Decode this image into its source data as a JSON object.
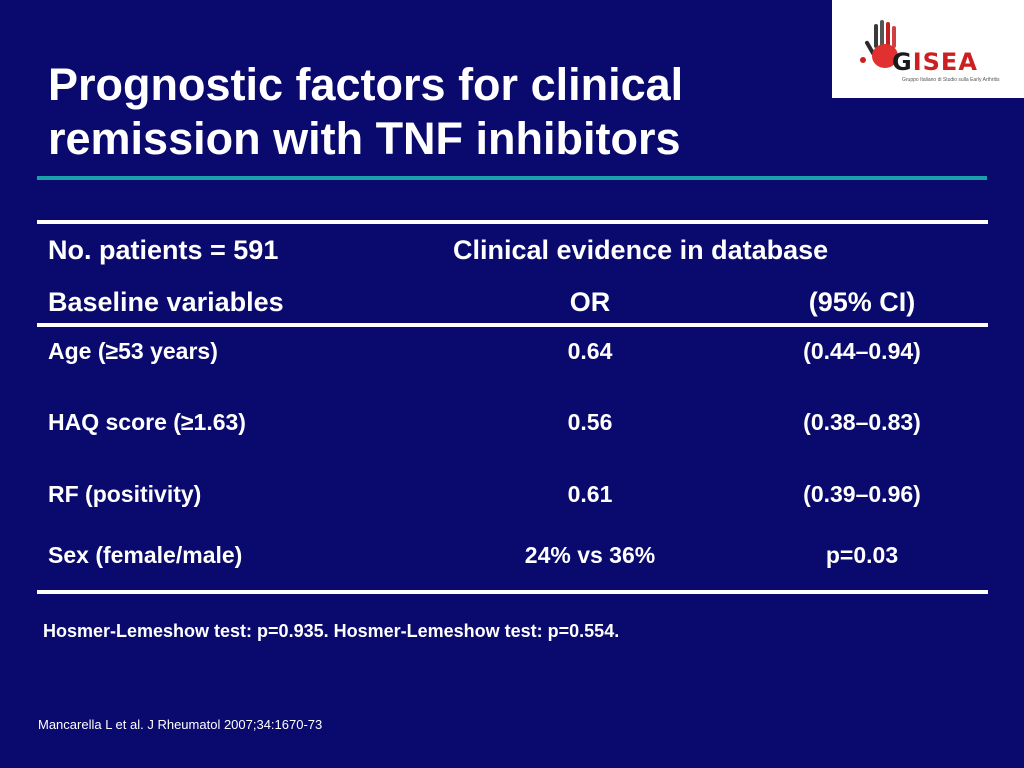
{
  "slide": {
    "title_line1": "Prognostic factors for clinical",
    "title_line2": "remission with TNF inhibitors"
  },
  "logo": {
    "name": "ISEA",
    "prefix": "G",
    "subtitle": "Gruppo Italiano di Studio sulla Early Arthritis"
  },
  "table": {
    "header_row1": {
      "left": "No. patients = 591",
      "right": "Clinical evidence in database"
    },
    "header_row2": {
      "variable": "Baseline variables",
      "or": "OR",
      "ci": "(95% CI)"
    },
    "rows": [
      {
        "variable": "Age (≥53 years)",
        "or": "0.64",
        "ci": "(0.44–0.94)"
      },
      {
        "variable": "HAQ score (≥1.63)",
        "or": "0.56",
        "ci": "(0.38–0.83)"
      },
      {
        "variable": "RF (positivity)",
        "or": "0.61",
        "ci": "(0.39–0.96)"
      },
      {
        "variable": "Sex (female/male)",
        "or": "24% vs 36%",
        "ci": "p=0.03"
      }
    ]
  },
  "note": "Hosmer-Lemeshow test: p=0.935. Hosmer-Lemeshow test: p=0.554.",
  "reference": "Mancarella L et al. J Rheumatol 2007;34:1670-73",
  "colors": {
    "background": "#0a0a6e",
    "title_rule": "#1aa0a8",
    "text": "#ffffff",
    "logo_red": "#cc2020"
  }
}
